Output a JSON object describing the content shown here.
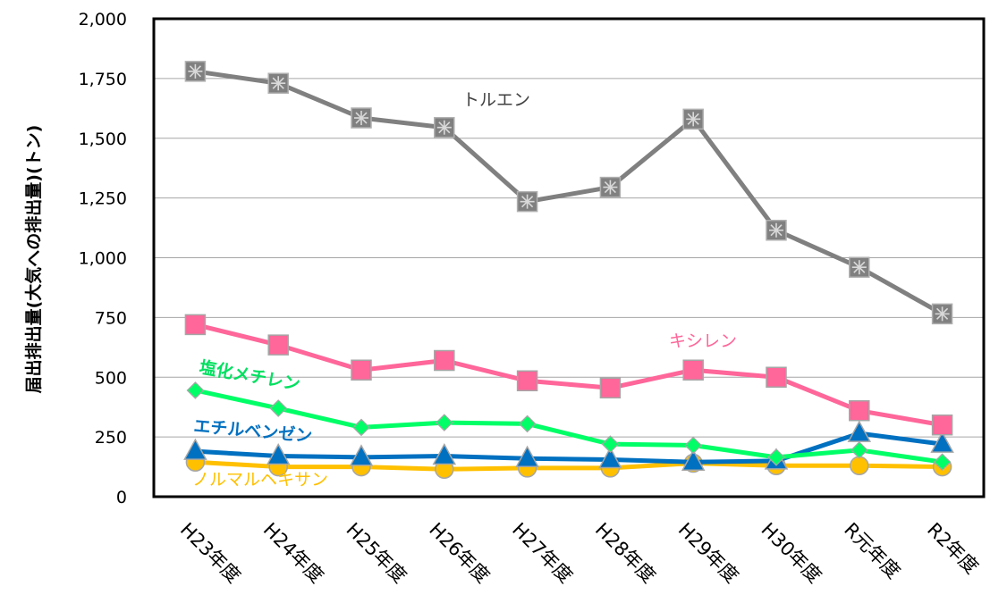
{
  "chart_data": {
    "type": "line",
    "title": "",
    "xlabel": "",
    "ylabel": "届出排出量(大気への排出量)(トン)",
    "ylim": [
      0,
      2000
    ],
    "yticks": [
      "0",
      "250",
      "500",
      "750",
      "1,000",
      "1,250",
      "1,500",
      "1,750",
      "2,000"
    ],
    "grid": true,
    "categories": [
      "H23年度",
      "H24年度",
      "H25年度",
      "H26年度",
      "H27年度",
      "H28年度",
      "H29年度",
      "H30年度",
      "R元年度",
      "R2年度"
    ],
    "series": [
      {
        "name": "トルエン",
        "color": "#808080",
        "marker": "square-asterisk",
        "values": [
          1780,
          1730,
          1585,
          1545,
          1235,
          1295,
          1580,
          1115,
          960,
          765
        ]
      },
      {
        "name": "キシレン",
        "color": "#ff6699",
        "marker": "square",
        "values": [
          720,
          635,
          530,
          570,
          485,
          455,
          530,
          500,
          360,
          300
        ]
      },
      {
        "name": "塩化メチレン",
        "color": "#00ff66",
        "marker": "diamond",
        "values": [
          445,
          370,
          290,
          310,
          305,
          220,
          215,
          165,
          195,
          145
        ]
      },
      {
        "name": "エチルベンゼン",
        "color": "#0070c0",
        "marker": "triangle",
        "values": [
          190,
          170,
          165,
          170,
          160,
          155,
          145,
          150,
          265,
          220
        ]
      },
      {
        "name": "ノルマルヘキサン",
        "color": "#ffc000",
        "marker": "circle",
        "values": [
          145,
          125,
          125,
          115,
          120,
          120,
          140,
          130,
          130,
          125
        ]
      }
    ]
  }
}
